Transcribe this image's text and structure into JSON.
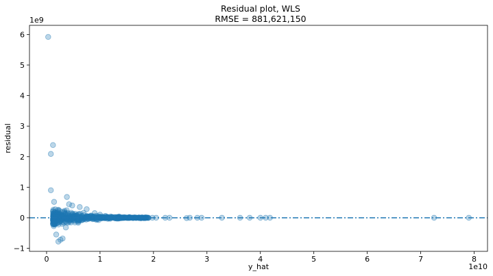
{
  "chart_data": {
    "type": "scatter",
    "title": "Residual plot, WLS",
    "subtitle": "RMSE = 881,621,150",
    "xlabel": "y_hat",
    "ylabel": "residual",
    "x_offset_label": "1e10",
    "y_offset_label": "1e9",
    "xlim": [
      -0.32,
      8.25
    ],
    "ylim": [
      -1.1,
      6.3
    ],
    "x_ticks": [
      0,
      1,
      2,
      3,
      4,
      5,
      6,
      7,
      8
    ],
    "y_ticks": [
      -1,
      0,
      1,
      2,
      3,
      4,
      5,
      6
    ],
    "grid": false,
    "marker_color": "#1f77b4",
    "reference_line": {
      "y": 0,
      "style": "dash-dot",
      "color": "#1f77b4"
    },
    "points": [
      {
        "x": 0.03,
        "y": 5.92
      },
      {
        "x": 0.12,
        "y": 2.38
      },
      {
        "x": 0.08,
        "y": 2.09
      },
      {
        "x": 0.08,
        "y": 0.9
      },
      {
        "x": 0.38,
        "y": 0.68
      },
      {
        "x": 0.14,
        "y": 0.52
      },
      {
        "x": 0.42,
        "y": 0.44
      },
      {
        "x": 0.48,
        "y": 0.4
      },
      {
        "x": 0.62,
        "y": 0.35
      },
      {
        "x": 0.75,
        "y": 0.28
      },
      {
        "x": 0.26,
        "y": -0.72
      },
      {
        "x": 0.22,
        "y": -0.78
      },
      {
        "x": 0.3,
        "y": -0.68
      },
      {
        "x": 0.18,
        "y": -0.55
      },
      {
        "x": 0.36,
        "y": -0.32
      },
      {
        "x": 0.9,
        "y": 0.15
      },
      {
        "x": 1.0,
        "y": 0.1
      },
      {
        "x": 1.1,
        "y": 0.06
      },
      {
        "x": 1.2,
        "y": 0.04
      },
      {
        "x": 1.35,
        "y": 0.03
      },
      {
        "x": 1.45,
        "y": 0.02
      },
      {
        "x": 1.55,
        "y": 0.02
      },
      {
        "x": 1.65,
        "y": 0.01
      },
      {
        "x": 1.72,
        "y": 0.0
      },
      {
        "x": 1.78,
        "y": 0.0
      },
      {
        "x": 1.85,
        "y": 0.0
      },
      {
        "x": 1.98,
        "y": 0.0
      },
      {
        "x": 2.05,
        "y": 0.0
      },
      {
        "x": 2.22,
        "y": 0.0
      },
      {
        "x": 2.3,
        "y": 0.0
      },
      {
        "x": 2.62,
        "y": -0.01
      },
      {
        "x": 2.68,
        "y": 0.0
      },
      {
        "x": 2.82,
        "y": 0.0
      },
      {
        "x": 2.9,
        "y": 0.0
      },
      {
        "x": 3.28,
        "y": 0.0
      },
      {
        "x": 3.62,
        "y": 0.0
      },
      {
        "x": 3.8,
        "y": 0.0
      },
      {
        "x": 4.0,
        "y": 0.0
      },
      {
        "x": 4.1,
        "y": 0.0
      },
      {
        "x": 4.18,
        "y": 0.0
      },
      {
        "x": 7.25,
        "y": 0.0
      },
      {
        "x": 7.9,
        "y": 0.0
      }
    ]
  }
}
